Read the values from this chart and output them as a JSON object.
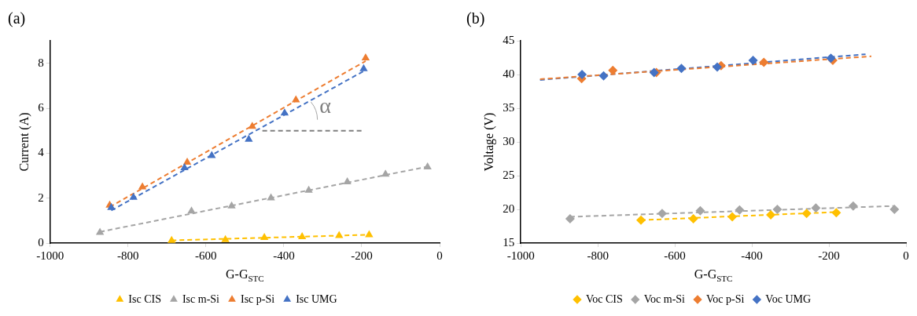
{
  "chart_data": [
    {
      "type": "scatter",
      "title": "(a)",
      "xlabel": "G-G$_{STC}$",
      "ylabel": "Current (A)",
      "xlim": [
        -1000,
        0
      ],
      "xticks": [
        -1000,
        -800,
        -600,
        -400,
        -200,
        0
      ],
      "ylim": [
        0,
        9
      ],
      "yticks": [
        0,
        2,
        4,
        6,
        8
      ],
      "grid": false,
      "legend": "bottom",
      "marker": "triangle",
      "annotations": [
        "α"
      ],
      "series": [
        {
          "name": "Isc CIS",
          "color": "#ffc000",
          "x": [
            -688,
            -550,
            -450,
            -353,
            -258,
            -181
          ],
          "values": [
            0.11,
            0.15,
            0.24,
            0.28,
            0.33,
            0.37
          ]
        },
        {
          "name": "Isc m-Si",
          "color": "#a5a5a5",
          "x": [
            -872,
            -637,
            -534,
            -433,
            -336,
            -237,
            -139,
            -31
          ],
          "values": [
            0.47,
            1.42,
            1.65,
            2.01,
            2.35,
            2.72,
            3.06,
            3.38
          ]
        },
        {
          "name": "Isc p-Si",
          "color": "#ed7d31",
          "x": [
            -847,
            -763,
            -648,
            -481,
            -369,
            -190
          ],
          "values": [
            1.68,
            2.49,
            3.59,
            5.19,
            6.37,
            8.23
          ]
        },
        {
          "name": "Isc UMG",
          "color": "#4472c4",
          "x": [
            -843,
            -786,
            -655,
            -585,
            -490,
            -398,
            -195
          ],
          "values": [
            1.58,
            2.03,
            3.35,
            3.89,
            4.61,
            5.78,
            7.75
          ]
        },
        {
          "type": "line",
          "color": "#ffc000",
          "marker": "none",
          "line_style": "dashed",
          "x": [
            -688,
            -181
          ],
          "values": [
            0.12,
            0.37
          ]
        },
        {
          "type": "line",
          "color": "#a5a5a5",
          "marker": "none",
          "line_style": "dashed",
          "x": [
            -872,
            -31
          ],
          "values": [
            0.5,
            3.4
          ]
        },
        {
          "type": "line",
          "color": "#ed7d31",
          "marker": "none",
          "line_style": "dashed",
          "x": [
            -847,
            -190
          ],
          "values": [
            1.6,
            8.1
          ]
        },
        {
          "type": "line",
          "color": "#4472c4",
          "marker": "none",
          "line_style": "dashed",
          "x": [
            -843,
            -195
          ],
          "values": [
            1.45,
            7.65
          ]
        },
        {
          "type": "line",
          "color": "#7f7f7f",
          "marker": "none",
          "line_style": "dashed",
          "x": [
            -455,
            -200
          ],
          "values": [
            5,
            5
          ]
        }
      ]
    },
    {
      "type": "scatter",
      "title": "(b)",
      "xlabel": "G-G$_{STC}$",
      "ylabel": "Voltage (V)",
      "xlim": [
        -1000,
        0
      ],
      "xticks": [
        -1000,
        -800,
        -600,
        -400,
        -200,
        0
      ],
      "ylim": [
        15,
        45
      ],
      "yticks": [
        15,
        20,
        25,
        30,
        35,
        40,
        45
      ],
      "grid": false,
      "legend": "bottom",
      "marker": "diamond",
      "series": [
        {
          "name": "Voc CIS",
          "color": "#ffc000",
          "x": [
            -688,
            -552,
            -451,
            -351,
            -258,
            -181
          ],
          "values": [
            18.4,
            18.6,
            18.9,
            19.2,
            19.4,
            19.5
          ]
        },
        {
          "name": "Voc m-Si",
          "color": "#a5a5a5",
          "x": [
            -872,
            -633,
            -534,
            -432,
            -334,
            -234,
            -137,
            -30
          ],
          "values": [
            18.6,
            19.4,
            19.8,
            19.9,
            20,
            20.2,
            20.5,
            20
          ]
        },
        {
          "name": "Voc p-Si",
          "color": "#ed7d31",
          "x": [
            -842,
            -761,
            -648,
            -480,
            -369,
            -190
          ],
          "values": [
            39.4,
            40.6,
            40.3,
            41.3,
            41.8,
            42.1
          ]
        },
        {
          "name": "Voc UMG",
          "color": "#4472c4",
          "x": [
            -841,
            -785,
            -654,
            -583,
            -490,
            -397,
            -195
          ],
          "values": [
            40,
            39.8,
            40.3,
            40.9,
            41.1,
            42.1,
            42.4
          ]
        },
        {
          "type": "line",
          "color": "#ffc000",
          "marker": "none",
          "line_style": "dashed",
          "x": [
            -688,
            -181
          ],
          "values": [
            18.4,
            19.6
          ]
        },
        {
          "type": "line",
          "color": "#a5a5a5",
          "marker": "none",
          "line_style": "dashed",
          "x": [
            -872,
            -30
          ],
          "values": [
            18.9,
            20.5
          ]
        },
        {
          "type": "line",
          "color": "#ed7d31",
          "marker": "none",
          "line_style": "dashed",
          "x": [
            -950,
            -90
          ],
          "values": [
            39.3,
            42.7
          ]
        },
        {
          "type": "line",
          "color": "#4472c4",
          "marker": "none",
          "line_style": "dashed",
          "x": [
            -950,
            -105
          ],
          "values": [
            39.2,
            43
          ]
        }
      ]
    }
  ]
}
